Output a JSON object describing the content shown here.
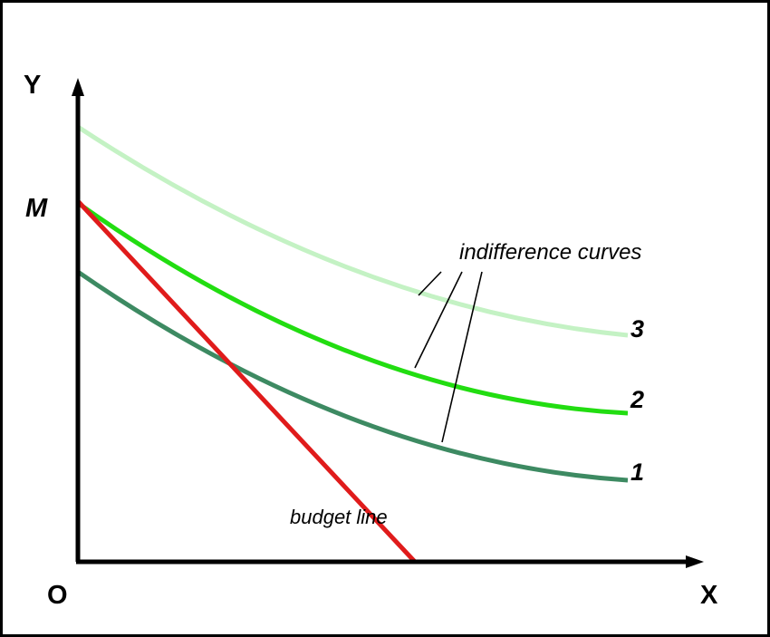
{
  "axes": {
    "y_label": "Y",
    "x_label": "X",
    "origin_label": "O",
    "intercept_label": "M"
  },
  "curves": [
    {
      "label": "1",
      "color": "#3d8a62"
    },
    {
      "label": "2",
      "color": "#22dd11"
    },
    {
      "label": "3",
      "color": "#c4f2c4"
    }
  ],
  "budget_line": {
    "label": "budget line",
    "color": "#e01b1b"
  },
  "annotation": {
    "text": "indifference curves"
  }
}
